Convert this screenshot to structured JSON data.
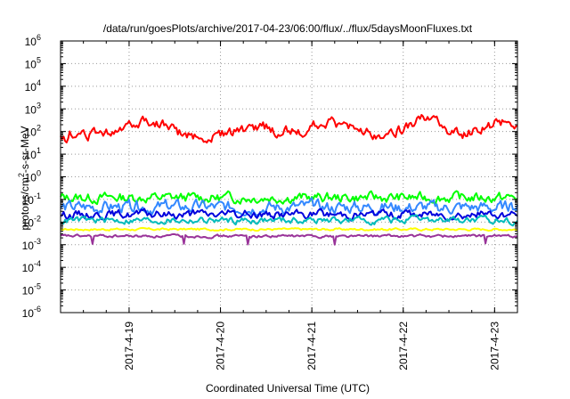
{
  "chart_data": {
    "type": "line",
    "title": "/data/run/goesPlots/archive/2017-04-23/06:00/flux/../flux/5daysMoonFluxes.txt",
    "xlabel": "Coordinated Universal Time (UTC)",
    "ylabel_main": "protons/cm",
    "ylabel_sup": "2",
    "ylabel_rest": "-s-sr-MeV",
    "y_scale": "log",
    "ylim_exponents": [
      -6,
      6
    ],
    "y_ticks": [
      {
        "base": "10",
        "exp": "6"
      },
      {
        "base": "10",
        "exp": "5"
      },
      {
        "base": "10",
        "exp": "4"
      },
      {
        "base": "10",
        "exp": "3"
      },
      {
        "base": "10",
        "exp": "2"
      },
      {
        "base": "10",
        "exp": "1"
      },
      {
        "base": "10",
        "exp": "0"
      },
      {
        "base": "10",
        "exp": "-1"
      },
      {
        "base": "10",
        "exp": "-2"
      },
      {
        "base": "10",
        "exp": "-3"
      },
      {
        "base": "10",
        "exp": "-4"
      },
      {
        "base": "10",
        "exp": "-5"
      },
      {
        "base": "10",
        "exp": "-6"
      }
    ],
    "x_range_days": [
      "2017-04-18 06:00",
      "2017-04-23 06:00"
    ],
    "x_ticks": [
      "2017-4-19",
      "2017-4-20",
      "2017-4-21",
      "2017-4-22",
      "2017-4-23"
    ],
    "grid": true,
    "series": [
      {
        "color": "#ff0000",
        "level": 80,
        "noise": 0.2,
        "seed": 1,
        "bumps": [
          {
            "day": 0.95,
            "width": 0.35,
            "amp": 0.55
          },
          {
            "day": 2.15,
            "width": 0.22,
            "amp": 0.3
          },
          {
            "day": 2.9,
            "width": 0.25,
            "amp": 0.45
          },
          {
            "day": 3.9,
            "width": 0.2,
            "amp": 0.45
          },
          {
            "day": 4.05,
            "width": 0.1,
            "amp": 0.5
          },
          {
            "day": 4.85,
            "width": 0.25,
            "amp": 0.55
          }
        ],
        "dips": [
          {
            "day": 0.1,
            "amp": -0.3,
            "width": 0.15
          },
          {
            "day": 1.4,
            "amp": -0.2,
            "width": 0.3
          },
          {
            "day": 4.98,
            "amp": -0.2,
            "width": 0.05
          }
        ]
      },
      {
        "color": "#00ff00",
        "level": 0.12,
        "noise": 0.18,
        "seed": 2,
        "bumps": [],
        "dips": []
      },
      {
        "color": "#3388ff",
        "level": 0.045,
        "noise": 0.22,
        "seed": 3,
        "bumps": [],
        "dips": []
      },
      {
        "color": "#0000dd",
        "level": 0.022,
        "noise": 0.15,
        "seed": 4,
        "bumps": [],
        "dips": []
      },
      {
        "color": "#00bbbb",
        "level": 0.012,
        "noise": 0.12,
        "seed": 5,
        "bumps": [],
        "dips": []
      },
      {
        "color": "#ffff00",
        "level": 0.0048,
        "noise": 0.04,
        "seed": 6,
        "bumps": [],
        "dips": []
      },
      {
        "color": "#993399",
        "level": 0.0024,
        "noise": 0.05,
        "seed": 7,
        "bumps": [],
        "dips": [],
        "spikes_down": [
          0.35,
          1.35,
          2.05,
          3.0,
          4.65
        ]
      }
    ]
  }
}
